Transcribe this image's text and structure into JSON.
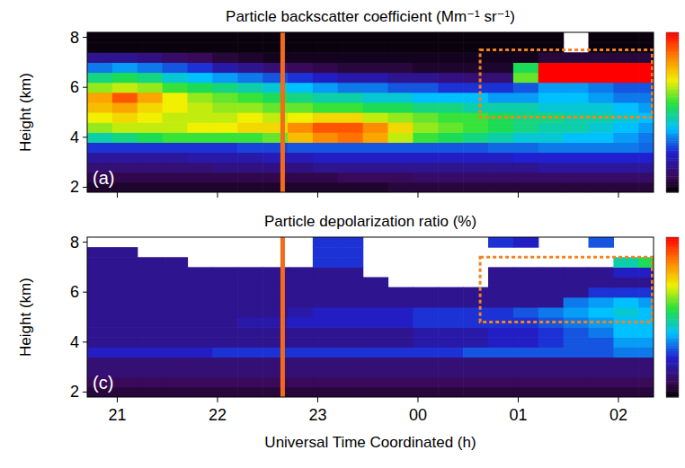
{
  "chart_data": [
    {
      "type": "heatmap",
      "title": "Particle backscatter coefficient (Mm⁻¹ sr⁻¹)",
      "y_label": "Height (km)",
      "panel_label": "(a)",
      "xlim": [
        20.7,
        26.35
      ],
      "ylim": [
        1.8,
        8.2
      ],
      "xticks": [
        21,
        22,
        23,
        {
          "value": 24,
          "label": "00"
        },
        {
          "value": 25,
          "label": "01"
        },
        {
          "value": 26,
          "label": "02"
        }
      ],
      "yticks": [
        2,
        4,
        6,
        8
      ],
      "tick_labels": "y",
      "zlim": [
        0,
        3
      ],
      "x_bins": [
        20.7,
        20.95,
        21.2,
        21.45,
        21.7,
        21.95,
        22.2,
        22.45,
        22.7,
        22.95,
        23.2,
        23.45,
        23.7,
        23.95,
        24.2,
        24.45,
        24.7,
        24.95,
        25.2,
        25.45,
        25.7,
        25.95,
        26.2,
        26.35
      ],
      "y_bins": [
        1.8,
        2.2,
        2.6,
        3.0,
        3.4,
        3.8,
        4.2,
        4.6,
        5.0,
        5.4,
        5.8,
        6.2,
        6.6,
        7.0,
        7.4,
        7.8,
        8.2
      ],
      "z": [
        [
          0.15,
          0.15,
          0.15,
          0.15,
          0.15,
          0.15,
          0.15,
          0.15,
          0.15,
          0.15,
          0.15,
          0.15,
          0.2,
          0.2,
          0.2,
          0.2,
          0.2,
          0.2,
          0.2,
          0.2,
          0.2,
          0.2,
          0.2
        ],
        [
          0.25,
          0.25,
          0.25,
          0.25,
          0.25,
          0.25,
          0.25,
          0.25,
          0.25,
          0.25,
          0.3,
          0.3,
          0.3,
          0.35,
          0.35,
          0.35,
          0.35,
          0.35,
          0.35,
          0.35,
          0.35,
          0.35,
          0.35
        ],
        [
          0.4,
          0.4,
          0.4,
          0.4,
          0.4,
          0.45,
          0.45,
          0.45,
          0.45,
          0.5,
          0.5,
          0.5,
          0.5,
          0.5,
          0.5,
          0.5,
          0.5,
          0.5,
          0.55,
          0.55,
          0.55,
          0.55,
          0.55
        ],
        [
          0.55,
          0.55,
          0.55,
          0.55,
          0.6,
          0.6,
          0.6,
          0.65,
          0.65,
          0.7,
          0.7,
          0.7,
          0.7,
          0.7,
          0.7,
          0.7,
          0.7,
          0.75,
          0.75,
          0.75,
          0.75,
          0.75,
          0.75
        ],
        [
          0.8,
          0.8,
          0.8,
          0.8,
          0.8,
          0.8,
          0.85,
          0.85,
          0.9,
          0.9,
          0.9,
          0.9,
          0.9,
          0.9,
          0.9,
          0.9,
          0.95,
          0.95,
          1.0,
          1.0,
          1.0,
          1.0,
          0.95
        ],
        [
          1.4,
          1.5,
          1.6,
          1.7,
          1.7,
          1.7,
          1.7,
          1.8,
          2.3,
          2.5,
          2.6,
          2.4,
          2.0,
          1.7,
          1.6,
          1.5,
          1.4,
          1.3,
          1.3,
          1.2,
          1.2,
          1.1,
          1.0
        ],
        [
          1.9,
          2.0,
          2.0,
          2.0,
          2.1,
          2.1,
          2.2,
          2.2,
          2.5,
          2.7,
          2.7,
          2.5,
          2.2,
          1.9,
          1.8,
          1.7,
          1.6,
          1.5,
          1.4,
          1.4,
          1.3,
          1.2,
          1.1
        ],
        [
          2.1,
          2.2,
          2.1,
          2.0,
          2.0,
          2.0,
          2.1,
          2.0,
          2.1,
          2.2,
          2.2,
          2.0,
          1.9,
          1.8,
          1.7,
          1.7,
          1.6,
          1.5,
          1.5,
          1.4,
          1.4,
          1.3,
          1.2
        ],
        [
          2.3,
          2.4,
          2.2,
          2.1,
          2.0,
          1.9,
          1.9,
          1.8,
          1.8,
          1.7,
          1.7,
          1.6,
          1.6,
          1.5,
          1.5,
          1.4,
          1.4,
          1.4,
          1.3,
          1.3,
          1.3,
          1.2,
          1.1
        ],
        [
          2.4,
          2.7,
          2.4,
          2.1,
          1.9,
          1.8,
          1.7,
          1.6,
          1.5,
          1.4,
          1.4,
          1.3,
          1.3,
          1.2,
          1.2,
          1.2,
          1.1,
          1.1,
          1.2,
          1.2,
          1.1,
          1.0,
          1.0
        ],
        [
          1.9,
          2.0,
          1.9,
          1.7,
          1.6,
          1.5,
          1.4,
          1.3,
          1.2,
          1.1,
          1.0,
          1.0,
          0.9,
          0.9,
          0.8,
          0.8,
          0.8,
          0.9,
          1.1,
          1.1,
          1.0,
          0.9,
          0.9
        ],
        [
          1.5,
          1.6,
          1.5,
          1.3,
          1.2,
          1.1,
          1.0,
          0.9,
          0.8,
          0.7,
          0.6,
          0.6,
          0.5,
          0.5,
          0.45,
          0.4,
          0.4,
          1.8,
          3.0,
          3.0,
          3.0,
          3.0,
          3.0
        ],
        [
          1.0,
          1.1,
          1.0,
          0.9,
          0.8,
          0.6,
          0.5,
          0.4,
          0.3,
          0.25,
          0.2,
          0.2,
          0.2,
          0.15,
          0.15,
          0.15,
          0.15,
          1.6,
          3.0,
          3.0,
          3.0,
          3.0,
          3.0
        ],
        [
          0.5,
          0.5,
          0.45,
          0.35,
          0.3,
          0.2,
          0.15,
          0.1,
          0.1,
          0.1,
          0.1,
          0.1,
          0.1,
          0.1,
          0.1,
          0.1,
          0.1,
          0.1,
          0.2,
          0.2,
          0.2,
          0.2,
          0.2
        ],
        [
          0.05,
          0.05,
          0.05,
          0.05,
          0.05,
          0.05,
          0.05,
          0.05,
          0.05,
          0.05,
          0.05,
          0.05,
          0.05,
          0.05,
          0.05,
          0.05,
          0.05,
          0.05,
          0.05,
          null,
          0.05,
          0.05,
          0.05
        ],
        [
          0.05,
          0.05,
          0.05,
          0.05,
          0.05,
          0.05,
          0.05,
          0.05,
          0.05,
          0.05,
          0.05,
          0.05,
          0.05,
          0.05,
          0.05,
          0.05,
          0.05,
          0.05,
          0.05,
          null,
          0.05,
          0.05,
          0.05
        ]
      ],
      "annotations": [
        {
          "shape": "vline",
          "x": 22.65,
          "color": "#f26a1b"
        },
        {
          "shape": "rect",
          "x": [
            24.62,
            26.35
          ],
          "y": [
            4.8,
            7.5
          ],
          "color": "#f58220",
          "line_style": "dotted"
        }
      ]
    },
    {
      "type": "heatmap",
      "title": "Particle depolarization ratio (%)",
      "y_label": "Height (km)",
      "x_label": "Universal Time Coordinated (h)",
      "panel_label": "(c)",
      "xlim": [
        20.7,
        26.35
      ],
      "ylim": [
        1.8,
        8.2
      ],
      "xticks": [
        21,
        22,
        23,
        {
          "value": 24,
          "label": "00"
        },
        {
          "value": 25,
          "label": "01"
        },
        {
          "value": 26,
          "label": "02"
        }
      ],
      "yticks": [
        2,
        4,
        6,
        8
      ],
      "zlim": [
        0,
        30
      ],
      "x_bins": [
        20.7,
        20.95,
        21.2,
        21.45,
        21.7,
        21.95,
        22.2,
        22.45,
        22.7,
        22.95,
        23.2,
        23.45,
        23.7,
        23.95,
        24.2,
        24.45,
        24.7,
        24.95,
        25.2,
        25.45,
        25.7,
        25.95,
        26.2,
        26.35
      ],
      "y_bins": [
        1.8,
        2.2,
        2.6,
        3.0,
        3.4,
        3.8,
        4.2,
        4.6,
        5.0,
        5.4,
        5.8,
        6.2,
        6.6,
        7.0,
        7.4,
        7.8,
        8.2
      ],
      "z": [
        [
          2,
          2,
          2,
          2,
          2,
          2,
          2,
          2,
          2,
          2,
          2,
          2,
          2,
          2,
          2,
          2,
          2,
          2,
          2,
          2,
          2,
          2,
          2
        ],
        [
          3,
          3,
          3,
          3,
          3,
          3,
          3,
          3,
          3,
          3,
          3,
          3,
          3,
          3,
          3,
          3,
          3,
          3,
          3,
          3,
          3,
          3,
          3
        ],
        [
          4,
          4,
          4,
          4,
          4,
          4,
          4,
          4,
          4,
          4,
          4,
          4,
          4,
          4,
          4,
          4,
          4,
          4,
          4,
          4,
          4,
          4,
          4
        ],
        [
          4,
          4,
          4,
          4,
          4,
          4,
          4,
          4,
          4,
          4,
          4,
          4,
          4,
          4,
          4,
          4,
          4,
          4,
          4,
          4,
          4,
          4,
          4
        ],
        [
          7,
          7,
          7,
          7,
          7,
          8,
          8,
          8,
          8,
          8,
          8,
          8,
          8,
          8,
          8,
          9,
          9,
          9,
          9,
          9,
          9,
          10,
          10
        ],
        [
          5,
          5,
          5,
          5,
          5,
          5,
          5,
          5,
          5,
          5,
          5,
          5,
          5,
          6,
          6,
          6,
          7,
          7,
          8,
          9,
          9,
          11,
          11
        ],
        [
          5,
          5,
          5,
          5,
          5,
          5,
          5,
          5,
          5,
          5,
          5,
          5,
          5,
          6,
          6,
          6,
          7,
          7,
          8,
          9,
          10,
          12,
          12
        ],
        [
          5,
          5,
          5,
          5,
          5,
          5,
          6,
          6,
          7,
          7,
          7,
          7,
          7,
          8,
          8,
          8,
          8,
          8,
          9,
          10,
          11,
          12,
          12
        ],
        [
          5,
          5,
          5,
          5,
          5,
          5,
          5,
          5,
          6,
          7,
          7,
          7,
          7,
          8,
          8,
          8,
          8,
          9,
          10,
          11,
          12,
          13,
          12
        ],
        [
          5,
          5,
          5,
          5,
          5,
          5,
          5,
          5,
          5,
          5,
          5,
          5,
          5,
          5,
          5,
          5,
          5,
          5,
          5,
          10,
          11,
          12,
          11
        ],
        [
          5,
          5,
          5,
          5,
          5,
          5,
          5,
          5,
          5,
          5,
          5,
          5,
          5,
          5,
          5,
          5,
          5,
          5,
          5,
          5,
          8,
          8,
          8
        ],
        [
          5,
          5,
          5,
          5,
          5,
          5,
          5,
          5,
          5,
          5,
          5,
          5,
          null,
          null,
          null,
          null,
          5,
          5,
          5,
          5,
          5,
          5,
          5
        ],
        [
          5,
          5,
          5,
          5,
          5,
          5,
          5,
          5,
          5,
          5,
          5,
          null,
          null,
          null,
          null,
          null,
          5,
          5,
          5,
          5,
          5,
          7,
          7
        ],
        [
          5,
          5,
          5,
          5,
          null,
          null,
          null,
          null,
          null,
          8,
          8,
          null,
          null,
          null,
          null,
          null,
          null,
          null,
          null,
          null,
          null,
          14,
          16
        ],
        [
          5,
          5,
          null,
          null,
          null,
          null,
          null,
          null,
          null,
          8,
          8,
          null,
          null,
          null,
          null,
          null,
          null,
          null,
          null,
          null,
          null,
          null,
          null
        ],
        [
          null,
          null,
          null,
          null,
          null,
          null,
          null,
          null,
          null,
          8,
          8,
          null,
          null,
          null,
          null,
          null,
          8,
          7,
          null,
          null,
          9,
          null,
          null
        ]
      ],
      "annotations": [
        {
          "shape": "vline",
          "x": 22.65,
          "color": "#f26a1b"
        },
        {
          "shape": "rect",
          "x": [
            24.62,
            26.35
          ],
          "y": [
            4.8,
            7.4
          ],
          "color": "#f58220",
          "line_style": "dotted"
        }
      ]
    }
  ]
}
